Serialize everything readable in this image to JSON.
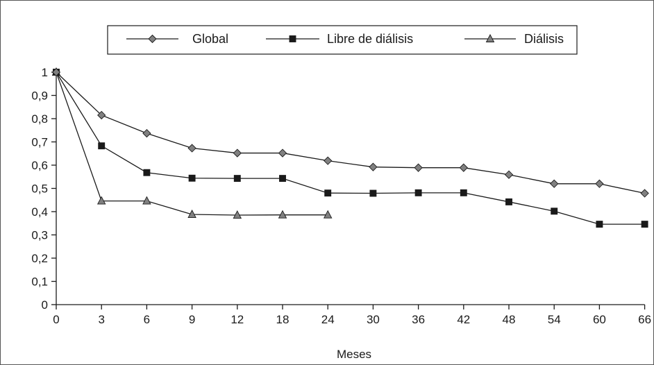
{
  "chart_data": {
    "type": "line",
    "title": "",
    "xlabel": "Meses",
    "ylabel": "",
    "categories": [
      "0",
      "3",
      "6",
      "9",
      "12",
      "18",
      "24",
      "30",
      "36",
      "42",
      "48",
      "54",
      "60",
      "66"
    ],
    "ylim": [
      0,
      1
    ],
    "yticks": [
      "0",
      "0,1",
      "0,2",
      "0,3",
      "0,4",
      "0,5",
      "0,6",
      "0,7",
      "0,8",
      "0,9",
      "1"
    ],
    "grid": false,
    "legend_position": "top",
    "series": [
      {
        "name": "Global",
        "marker": "diamond",
        "color": "#808080",
        "values": [
          1,
          0.815,
          0.737,
          0.673,
          0.652,
          0.652,
          0.619,
          0.592,
          0.589,
          0.589,
          0.559,
          0.52,
          0.52,
          0.479
        ]
      },
      {
        "name": "Libre de diálisis",
        "marker": "square",
        "color": "#1a1a1a",
        "values": [
          1,
          0.683,
          0.568,
          0.544,
          0.543,
          0.543,
          0.48,
          0.479,
          0.481,
          0.481,
          0.442,
          0.402,
          0.346,
          0.346
        ]
      },
      {
        "name": "Diálisis",
        "marker": "triangle",
        "color": "#808080",
        "values": [
          1,
          0.446,
          0.446,
          0.388,
          0.385,
          0.386,
          0.386,
          null,
          null,
          null,
          null,
          null,
          null,
          null
        ]
      }
    ]
  }
}
